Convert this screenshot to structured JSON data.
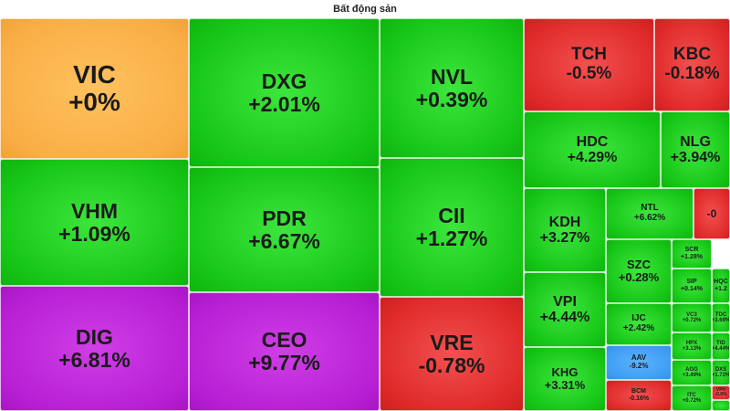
{
  "header": {
    "title": "Bất động sản"
  },
  "colors": {
    "up": "#16c616",
    "down": "#e02a2a",
    "reference": "#f9ad45",
    "ceiling": "#b61ed3",
    "floor": "#3b9cf0"
  },
  "tiles": [
    {
      "symbol": "VIC",
      "change": "+0%",
      "status": "ref"
    },
    {
      "symbol": "VHM",
      "change": "+1.09%",
      "status": "up"
    },
    {
      "symbol": "DIG",
      "change": "+6.81%",
      "status": "ceil"
    },
    {
      "symbol": "DXG",
      "change": "+2.01%",
      "status": "up"
    },
    {
      "symbol": "PDR",
      "change": "+6.67%",
      "status": "up"
    },
    {
      "symbol": "CEO",
      "change": "+9.77%",
      "status": "ceil"
    },
    {
      "symbol": "NVL",
      "change": "+0.39%",
      "status": "up"
    },
    {
      "symbol": "CII",
      "change": "+1.27%",
      "status": "up"
    },
    {
      "symbol": "VRE",
      "change": "-0.78%",
      "status": "down"
    },
    {
      "symbol": "TCH",
      "change": "-0.5%",
      "status": "down"
    },
    {
      "symbol": "KBC",
      "change": "-0.18%",
      "status": "down"
    },
    {
      "symbol": "HDC",
      "change": "+4.29%",
      "status": "up"
    },
    {
      "symbol": "NLG",
      "change": "+3.94%",
      "status": "up"
    },
    {
      "symbol": "KDH",
      "change": "+3.27%",
      "status": "up"
    },
    {
      "symbol": "NTL",
      "change": "+6.62%",
      "status": "up"
    },
    {
      "symbol": "",
      "change": "-0",
      "status": "down"
    },
    {
      "symbol": "SZC",
      "change": "+0.28%",
      "status": "up"
    },
    {
      "symbol": "SCR",
      "change": "+1.28%",
      "status": "up"
    },
    {
      "symbol": "VPI",
      "change": "+4.44%",
      "status": "up"
    },
    {
      "symbol": "SIP",
      "change": "+0.14%",
      "status": "up"
    },
    {
      "symbol": "HQC",
      "change": "+1.2",
      "status": "up"
    },
    {
      "symbol": "IJC",
      "change": "+2.42%",
      "status": "up"
    },
    {
      "symbol": "VC3",
      "change": "+0.72%",
      "status": "up"
    },
    {
      "symbol": "TDC",
      "change": "+3.69%",
      "status": "up"
    },
    {
      "symbol": "HPX",
      "change": "+3.13%",
      "status": "up"
    },
    {
      "symbol": "TID",
      "change": "+4.44%",
      "status": "up"
    },
    {
      "symbol": "KHG",
      "change": "+3.31%",
      "status": "up"
    },
    {
      "symbol": "AAV",
      "change": "-9.2%",
      "status": "floor"
    },
    {
      "symbol": "AGG",
      "change": "+3.49%",
      "status": "up"
    },
    {
      "symbol": "DXS",
      "change": "+1.72%",
      "status": "up"
    },
    {
      "symbol": "BCM",
      "change": "-0.16%",
      "status": "down"
    },
    {
      "symbol": "ITC",
      "change": "+0.72%",
      "status": "up"
    },
    {
      "symbol": "VPH",
      "change": "-0.8%",
      "status": "down"
    },
    {
      "symbol": "",
      "change": "",
      "status": "up"
    }
  ]
}
